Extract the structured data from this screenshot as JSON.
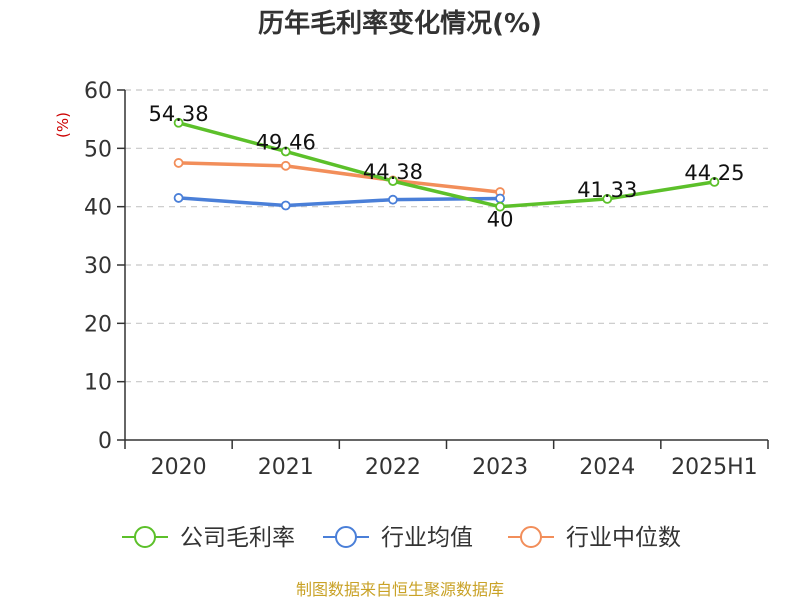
{
  "chart_data": {
    "type": "line",
    "title": "历年毛利率变化情况(%)",
    "ylabel": "(%)",
    "xlabel": "",
    "categories": [
      "2020",
      "2021",
      "2022",
      "2023",
      "2024",
      "2025H1"
    ],
    "ylim": [
      0,
      60
    ],
    "yticks": [
      0,
      10,
      20,
      30,
      40,
      50,
      60
    ],
    "grid": true,
    "legend_position": "bottom",
    "series": [
      {
        "name": "公司毛利率",
        "color": "#5cc02a",
        "values": [
          54.38,
          49.46,
          44.38,
          40,
          41.33,
          44.25
        ],
        "labels": [
          "54.38",
          "49.46",
          "44.38",
          "40",
          "41.33",
          "44.25"
        ]
      },
      {
        "name": "行业均值",
        "color": "#4a7fd8",
        "values": [
          41.5,
          40.2,
          41.2,
          41.4,
          null,
          null
        ]
      },
      {
        "name": "行业中位数",
        "color": "#f28e5a",
        "values": [
          47.5,
          47.0,
          44.5,
          42.5,
          null,
          null
        ]
      }
    ]
  },
  "footer": {
    "source": "制图数据来自恒生聚源数据库"
  }
}
